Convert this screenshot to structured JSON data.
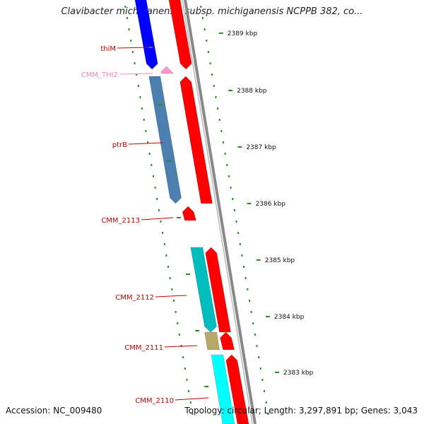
{
  "title": "Clavibacter michiganensis subsp. michiganensis NCPPB 382, co...",
  "footer": {
    "accession": "Accession: NC_009480",
    "summary": "Topology: circular; Length: 3,297,891 bp; Genes: 3,043"
  },
  "colors": {
    "backbone": "#888888",
    "forward_cds": "#ff0000",
    "ticks": "#2d8a2d",
    "label_red": "#cc0000",
    "label_pink": "#ee88bb"
  },
  "ticks": [
    {
      "label": "2389 kbp"
    },
    {
      "label": "2388 kbp"
    },
    {
      "label": "2387 kbp"
    },
    {
      "label": "2386 kbp"
    },
    {
      "label": "2385 kbp"
    },
    {
      "label": "2384 kbp"
    },
    {
      "label": "2383 kbp"
    }
  ],
  "genes": [
    {
      "name": "thiM",
      "label_color": "#cc0000",
      "feature_color": "#0000ff"
    },
    {
      "name": "CMM_THI2",
      "label_color": "#ee88bb",
      "feature_color": "#ff99cc"
    },
    {
      "name": "ptrB",
      "label_color": "#cc0000",
      "feature_color": "#4a7fb0"
    },
    {
      "name": "CMM_2113",
      "label_color": "#cc0000",
      "feature_color": "#ff0000"
    },
    {
      "name": "CMM_2112",
      "label_color": "#cc0000",
      "feature_color": "#00bdbd"
    },
    {
      "name": "CMM_2111",
      "label_color": "#cc0000",
      "feature_color": "#b8a868"
    },
    {
      "name": "CMM_2110",
      "label_color": "#cc0000",
      "feature_color": "#00ffff"
    }
  ]
}
